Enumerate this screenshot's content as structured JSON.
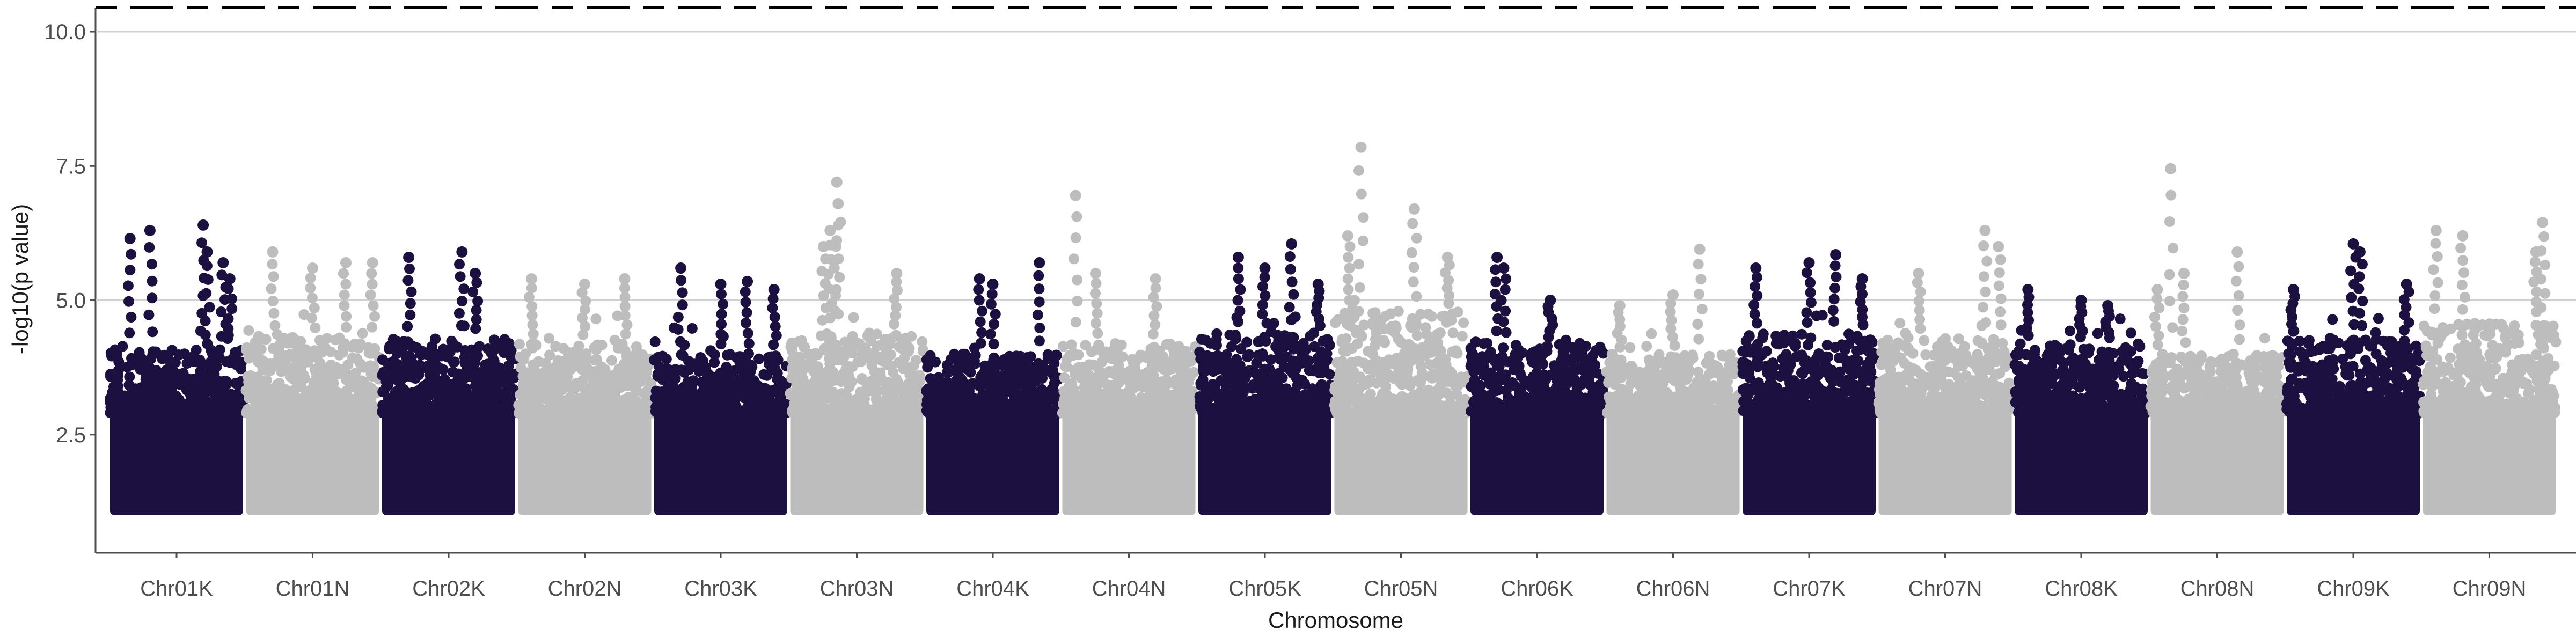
{
  "chart_data": {
    "type": "scatter",
    "subtype": "manhattan",
    "xlabel": "Chromosome",
    "ylabel": "-log10(p value)",
    "ylim": [
      0.3,
      10.45
    ],
    "yticks": [
      2.5,
      5.0,
      7.5,
      10.0
    ],
    "ytick_labels": [
      "2.5",
      "5.0",
      "7.5",
      "10.0"
    ],
    "hlines": [
      {
        "y": 5.0,
        "style": "solid",
        "color": "#d0d0d0"
      },
      {
        "y": 10.0,
        "style": "solid",
        "color": "#d0d0d0"
      },
      {
        "y": 10.45,
        "style": "dashed",
        "color": "#000000"
      }
    ],
    "colors": {
      "odd": "#1c1040",
      "even": "#bdbdbd"
    },
    "grid": false,
    "categories": [
      "Chr01K",
      "Chr01N",
      "Chr02K",
      "Chr02N",
      "Chr03K",
      "Chr03N",
      "Chr04K",
      "Chr04N",
      "Chr05K",
      "Chr05N",
      "Chr06K",
      "Chr06N",
      "Chr07K",
      "Chr07N",
      "Chr08K",
      "Chr08N",
      "Chr09K",
      "Chr09N"
    ],
    "series": [
      {
        "category": "Chr01K",
        "min": 1.0,
        "dense_top": 4.1,
        "peaks": [
          [
            0.15,
            6.15
          ],
          [
            0.3,
            6.3
          ],
          [
            0.7,
            6.4
          ],
          [
            0.73,
            5.9
          ],
          [
            0.85,
            5.7
          ],
          [
            0.9,
            5.4
          ]
        ]
      },
      {
        "category": "Chr01N",
        "min": 1.0,
        "dense_top": 4.3,
        "peaks": [
          [
            0.2,
            5.9
          ],
          [
            0.5,
            5.6
          ],
          [
            0.75,
            5.7
          ],
          [
            0.95,
            5.7
          ]
        ]
      },
      {
        "category": "Chr02K",
        "min": 1.0,
        "dense_top": 4.3,
        "peaks": [
          [
            0.2,
            5.8
          ],
          [
            0.6,
            5.9
          ],
          [
            0.7,
            5.5
          ]
        ]
      },
      {
        "category": "Chr02N",
        "min": 1.0,
        "dense_top": 4.2,
        "peaks": [
          [
            0.1,
            5.4
          ],
          [
            0.5,
            5.3
          ],
          [
            0.8,
            5.4
          ]
        ]
      },
      {
        "category": "Chr03K",
        "min": 1.0,
        "dense_top": 4.0,
        "peaks": [
          [
            0.2,
            5.6
          ],
          [
            0.5,
            5.3
          ],
          [
            0.7,
            5.35
          ],
          [
            0.9,
            5.2
          ]
        ]
      },
      {
        "category": "Chr03N",
        "min": 1.0,
        "dense_top": 4.4,
        "peaks": [
          [
            0.25,
            6.0
          ],
          [
            0.3,
            6.3
          ],
          [
            0.35,
            7.2
          ],
          [
            0.36,
            6.8
          ],
          [
            0.8,
            5.5
          ]
        ]
      },
      {
        "category": "Chr04K",
        "min": 1.0,
        "dense_top": 4.0,
        "peaks": [
          [
            0.4,
            5.4
          ],
          [
            0.5,
            5.3
          ],
          [
            0.85,
            5.7
          ]
        ]
      },
      {
        "category": "Chr04N",
        "min": 1.0,
        "dense_top": 4.2,
        "peaks": [
          [
            0.1,
            6.95
          ],
          [
            0.25,
            5.5
          ],
          [
            0.7,
            5.4
          ]
        ]
      },
      {
        "category": "Chr05K",
        "min": 1.0,
        "dense_top": 4.4,
        "peaks": [
          [
            0.3,
            5.8
          ],
          [
            0.5,
            5.6
          ],
          [
            0.7,
            6.05
          ],
          [
            0.9,
            5.3
          ]
        ]
      },
      {
        "category": "Chr05N",
        "min": 1.0,
        "dense_top": 4.8,
        "peaks": [
          [
            0.1,
            6.2
          ],
          [
            0.2,
            7.85
          ],
          [
            0.6,
            6.7
          ],
          [
            0.85,
            5.8
          ]
        ]
      },
      {
        "category": "Chr06K",
        "min": 1.0,
        "dense_top": 4.2,
        "peaks": [
          [
            0.2,
            5.8
          ],
          [
            0.25,
            5.6
          ],
          [
            0.6,
            5.0
          ]
        ]
      },
      {
        "category": "Chr06N",
        "min": 1.0,
        "dense_top": 4.0,
        "peaks": [
          [
            0.1,
            4.9
          ],
          [
            0.7,
            5.95
          ],
          [
            0.5,
            5.1
          ]
        ]
      },
      {
        "category": "Chr07K",
        "min": 1.0,
        "dense_top": 4.4,
        "peaks": [
          [
            0.1,
            5.6
          ],
          [
            0.5,
            5.7
          ],
          [
            0.7,
            5.85
          ],
          [
            0.9,
            5.4
          ]
        ]
      },
      {
        "category": "Chr07N",
        "min": 1.0,
        "dense_top": 4.3,
        "peaks": [
          [
            0.3,
            5.5
          ],
          [
            0.8,
            6.3
          ],
          [
            0.9,
            6.0
          ]
        ]
      },
      {
        "category": "Chr08K",
        "min": 1.0,
        "dense_top": 4.2,
        "peaks": [
          [
            0.1,
            5.2
          ],
          [
            0.5,
            5.0
          ],
          [
            0.7,
            4.9
          ]
        ]
      },
      {
        "category": "Chr08N",
        "min": 1.0,
        "dense_top": 4.0,
        "peaks": [
          [
            0.05,
            5.2
          ],
          [
            0.15,
            7.45
          ],
          [
            0.25,
            5.5
          ],
          [
            0.65,
            5.9
          ]
        ]
      },
      {
        "category": "Chr09K",
        "min": 1.0,
        "dense_top": 4.3,
        "peaks": [
          [
            0.05,
            5.2
          ],
          [
            0.5,
            6.05
          ],
          [
            0.55,
            5.9
          ],
          [
            0.9,
            5.3
          ]
        ]
      },
      {
        "category": "Chr09N",
        "min": 1.0,
        "dense_top": 4.6,
        "peaks": [
          [
            0.1,
            6.3
          ],
          [
            0.3,
            6.2
          ],
          [
            0.9,
            6.45
          ],
          [
            0.85,
            5.9
          ]
        ]
      }
    ]
  }
}
